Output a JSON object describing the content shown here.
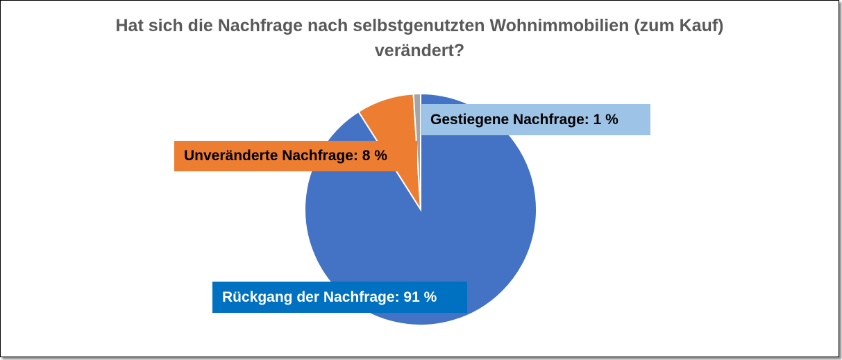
{
  "chart_data": {
    "type": "pie",
    "title_line1": "Hat sich die Nachfrage nach selbstgenutzten Wohnimmobilien (zum Kauf)",
    "title_line2": "verändert?",
    "slices": [
      {
        "name": "Rückgang der Nachfrage",
        "value": 91,
        "color": "#4472c4",
        "label": "Rückgang der Nachfrage:  91 %",
        "label_bg": "#0070c0",
        "label_color": "#ffffff"
      },
      {
        "name": "Unveränderte Nachfrage",
        "value": 8,
        "color": "#ed7d31",
        "label": "Unveränderte Nachfrage: 8 %",
        "label_bg": "#ed7d31",
        "label_color": "#000000"
      },
      {
        "name": "Gestiegene Nachfrage",
        "value": 1,
        "color": "#a5a5a5",
        "label": "Gestiegene Nachfrage: 1 %",
        "label_bg": "#9dc3e6",
        "label_color": "#000000"
      }
    ]
  }
}
